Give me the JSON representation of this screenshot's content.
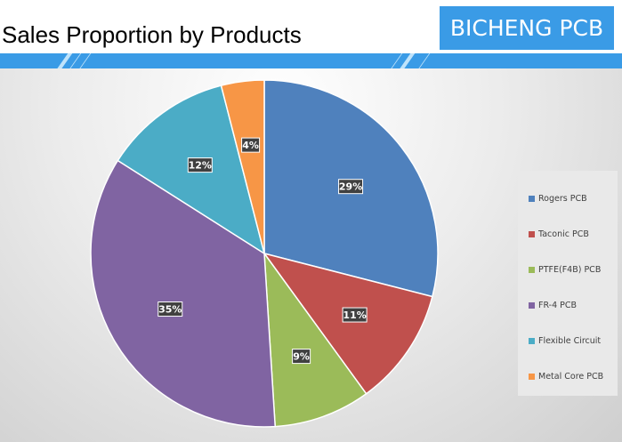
{
  "header": {
    "title": "Sales Proportion by Products",
    "logo": "BICHENG PCB"
  },
  "chart_data": {
    "type": "pie",
    "title": "Sales Proportion by Products",
    "categories": [
      "Rogers PCB",
      "Taconic PCB",
      "PTFE(F4B) PCB",
      "FR-4 PCB",
      "Flexible Circuit",
      "Metal Core PCB"
    ],
    "values": [
      29,
      11,
      9,
      35,
      12,
      4
    ],
    "labels": [
      "29%",
      "11%",
      "9%",
      "35%",
      "12%",
      "4%"
    ],
    "colors": [
      "#4f81bd",
      "#c0504d",
      "#9bbb59",
      "#8064a2",
      "#4bacc6",
      "#f79646"
    ],
    "legend_position": "right"
  }
}
